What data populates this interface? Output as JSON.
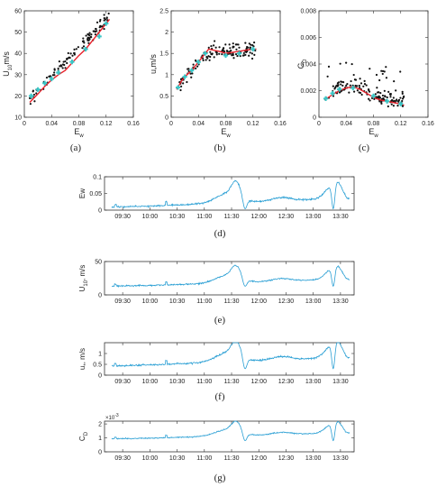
{
  "colors": {
    "points": "#111111",
    "fit": "#e8202a",
    "bin_marker": "#39c6c6",
    "series": "#2a9fd4"
  },
  "chart_data": [
    {
      "id": "a",
      "type": "scatter",
      "panel_label": "(a)",
      "xlabel": "E",
      "xlabel_sub": "w",
      "ylabel": "U",
      "ylabel_sub": "10",
      "ylabel_unit": "m/s",
      "xlim": [
        0,
        0.16
      ],
      "ylim": [
        10,
        60
      ],
      "xticks": [
        0,
        0.04,
        0.08,
        0.12,
        0.16
      ],
      "xtick_labels": [
        "0",
        "0.04",
        "0.08",
        "0.12",
        "0.16"
      ],
      "yticks": [
        10,
        20,
        30,
        40,
        50,
        60
      ],
      "ytick_labels": [
        "10",
        "20",
        "30",
        "40",
        "50",
        "60"
      ],
      "scatter_trend": {
        "a": 16,
        "b": 330,
        "noise": 2.5,
        "n": 110,
        "xmin": 0.008,
        "xmax": 0.125
      },
      "fit": {
        "x": [
          0.008,
          0.02,
          0.03,
          0.04,
          0.05,
          0.06,
          0.07,
          0.08,
          0.09,
          0.1,
          0.11,
          0.12,
          0.125
        ],
        "y": [
          17,
          21,
          24.5,
          27.5,
          30,
          32,
          35.5,
          39,
          42,
          46,
          50,
          54,
          56
        ]
      },
      "bins": {
        "x": [
          0.01,
          0.02,
          0.03,
          0.04,
          0.05,
          0.07,
          0.09,
          0.11,
          0.12
        ],
        "y": [
          20,
          23,
          26,
          28,
          31,
          36,
          42,
          48,
          54
        ]
      }
    },
    {
      "id": "b",
      "type": "scatter",
      "panel_label": "(b)",
      "xlabel": "E",
      "xlabel_sub": "w",
      "ylabel": "u",
      "ylabel_sub": "*",
      "ylabel_unit": "m/s",
      "xlim": [
        0,
        0.16
      ],
      "ylim": [
        0,
        2.5
      ],
      "xticks": [
        0,
        0.04,
        0.08,
        0.12,
        0.16
      ],
      "xtick_labels": [
        "0",
        "0.04",
        "0.08",
        "0.12",
        "0.16"
      ],
      "yticks": [
        0,
        0.5,
        1,
        1.5,
        2,
        2.5
      ],
      "ytick_labels": [
        "0",
        "0.5",
        "1",
        "1.5",
        "2",
        "2.5"
      ],
      "scatter_trend": {
        "kind": "sat",
        "noise": 0.17,
        "n": 130,
        "xmin": 0.008,
        "xmax": 0.125
      },
      "fit": {
        "x": [
          0.008,
          0.015,
          0.02,
          0.03,
          0.04,
          0.05,
          0.055,
          0.07,
          0.08,
          0.1,
          0.12,
          0.125
        ],
        "y": [
          0.65,
          0.85,
          0.95,
          1.1,
          1.3,
          1.5,
          1.6,
          1.55,
          1.5,
          1.55,
          1.6,
          1.6
        ]
      },
      "bins": {
        "x": [
          0.01,
          0.02,
          0.03,
          0.04,
          0.05,
          0.08,
          0.1,
          0.12
        ],
        "y": [
          0.7,
          0.95,
          1.1,
          1.3,
          1.5,
          1.45,
          1.5,
          1.6
        ]
      }
    },
    {
      "id": "c",
      "type": "scatter",
      "panel_label": "(c)",
      "xlabel": "E",
      "xlabel_sub": "w",
      "ylabel": "C",
      "ylabel_sub": "D",
      "ylabel_unit": "",
      "xlim": [
        0,
        0.16
      ],
      "ylim": [
        0,
        0.008
      ],
      "xticks": [
        0,
        0.04,
        0.08,
        0.12,
        0.16
      ],
      "xtick_labels": [
        "0",
        "0.04",
        "0.08",
        "0.12",
        "0.16"
      ],
      "yticks": [
        0,
        0.002,
        0.004,
        0.006,
        0.008
      ],
      "ytick_labels": [
        "0",
        "0.002",
        "0.004",
        "0.006",
        "0.008"
      ],
      "scatter_trend": {
        "kind": "hump",
        "noise": 0.0007,
        "n": 160,
        "xmin": 0.008,
        "xmax": 0.125
      },
      "fit": {
        "x": [
          0.008,
          0.02,
          0.03,
          0.04,
          0.05,
          0.06,
          0.07,
          0.08,
          0.09,
          0.1,
          0.11,
          0.12,
          0.125
        ],
        "y": [
          0.0013,
          0.0017,
          0.002,
          0.0022,
          0.0023,
          0.0021,
          0.0018,
          0.0015,
          0.0013,
          0.0012,
          0.0011,
          0.001,
          0.0009
        ]
      },
      "bins": {
        "x": [
          0.01,
          0.02,
          0.03,
          0.05,
          0.08,
          0.1,
          0.12
        ],
        "y": [
          0.0014,
          0.0018,
          0.0021,
          0.0022,
          0.0016,
          0.0012,
          0.001
        ]
      }
    },
    {
      "id": "d",
      "type": "line",
      "panel_label": "(d)",
      "ylabel": "Ew",
      "ylabel_sub": "",
      "ylabel_unit": "",
      "exponent": "",
      "tmin_minutes": 550,
      "tmax_minutes": 825,
      "xtick_labels": [
        "09:30",
        "10:00",
        "10:30",
        "11:00",
        "11:30",
        "12:00",
        "12:30",
        "13:00",
        "13:30"
      ],
      "ylim": [
        0,
        0.1
      ],
      "yticks": [
        0,
        0.05,
        0.1
      ],
      "ytick_labels": [
        "0",
        "0.05",
        "0.1"
      ],
      "base": 0.004,
      "scale": 0.08,
      "dip_to": 0.004
    },
    {
      "id": "e",
      "type": "line",
      "panel_label": "(e)",
      "ylabel": "U",
      "ylabel_sub": "10",
      "ylabel_unit": ", m/s",
      "exponent": "",
      "tmin_minutes": 550,
      "tmax_minutes": 825,
      "xtick_labels": [
        "09:30",
        "10:00",
        "10:30",
        "11:00",
        "11:30",
        "12:00",
        "12:30",
        "13:00",
        "13:30"
      ],
      "ylim": [
        0,
        50
      ],
      "yticks": [
        0,
        50
      ],
      "ytick_labels": [
        "0",
        "50"
      ],
      "base": 11,
      "scale": 32,
      "dip_to": 13
    },
    {
      "id": "f",
      "type": "line",
      "panel_label": "(f)",
      "ylabel": "u",
      "ylabel_sub": "*",
      "ylabel_unit": ", m/s",
      "exponent": "",
      "tmin_minutes": 550,
      "tmax_minutes": 825,
      "xtick_labels": [
        "09:30",
        "10:00",
        "10:30",
        "11:00",
        "11:30",
        "12:00",
        "12:30",
        "13:00",
        "13:30"
      ],
      "ylim": [
        0,
        1.5
      ],
      "yticks": [
        0,
        0.5,
        1
      ],
      "ytick_labels": [
        "0",
        "0.5",
        "1"
      ],
      "base": 0.35,
      "scale": 1.2,
      "dip_to": 0.3
    },
    {
      "id": "g",
      "type": "line",
      "panel_label": "(g)",
      "ylabel": "C",
      "ylabel_sub": "D",
      "ylabel_unit": "",
      "exponent": "×10",
      "exponent_sup": "-3",
      "tmin_minutes": 550,
      "tmax_minutes": 825,
      "xtick_labels": [
        "09:30",
        "10:00",
        "10:30",
        "11:00",
        "11:30",
        "12:00",
        "12:30",
        "13:00",
        "13:30"
      ],
      "ylim": [
        0,
        2.2
      ],
      "yticks": [
        0,
        1,
        2
      ],
      "ytick_labels": [
        "0",
        "1",
        "2"
      ],
      "base": 0.85,
      "scale": 1.3,
      "dip_to": 0.8
    }
  ]
}
